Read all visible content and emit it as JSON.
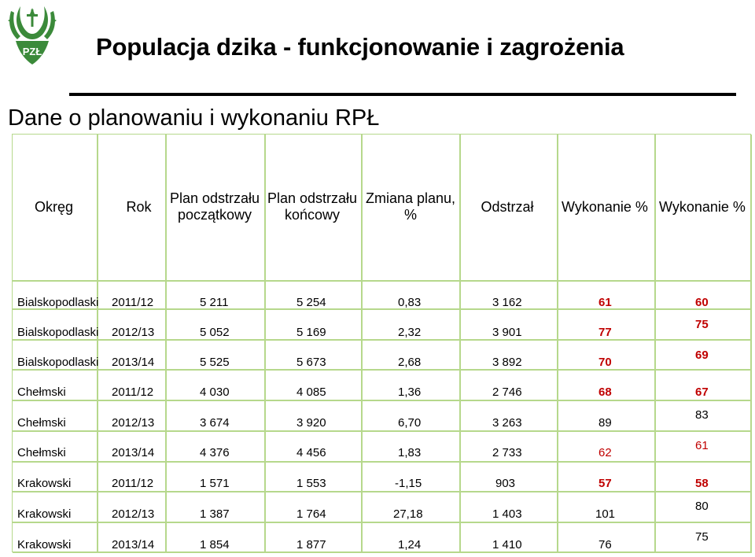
{
  "header": {
    "title": "Populacja dzika - funkcjonowanie i zagrożenia",
    "subtitle": "Dane o planowaniu i wykonaniu RPŁ"
  },
  "logo": {
    "text": "PZŁ"
  },
  "table": {
    "columns": [
      "Okręg",
      "Rok",
      "Plan odstrzału początkowy",
      "Plan odstrzału końcowy",
      "Zmiana planu, %",
      "Odstrzał",
      "Wykonanie %",
      "Wykonanie %"
    ],
    "rows": [
      {
        "okreg": "Bialskopodlaski",
        "rok": "2011/12",
        "plan_pocz": "5 211",
        "plan_konc": "5 254",
        "zmiana": "0,83",
        "odstrzal": "3 162",
        "wyk1": "61",
        "wyk2": "60"
      },
      {
        "okreg": "Bialskopodlaski",
        "rok": "2012/13",
        "plan_pocz": "5 052",
        "plan_konc": "5 169",
        "zmiana": "2,32",
        "odstrzal": "3 901",
        "wyk1": "77",
        "wyk2": "75"
      },
      {
        "okreg": "Bialskopodlaski",
        "rok": "2013/14",
        "plan_pocz": "5 525",
        "plan_konc": "5 673",
        "zmiana": "2,68",
        "odstrzal": "3 892",
        "wyk1": "70",
        "wyk2": "69"
      },
      {
        "okreg": "Chełmski",
        "rok": "2011/12",
        "plan_pocz": "4 030",
        "plan_konc": "4 085",
        "zmiana": "1,36",
        "odstrzal": "2 746",
        "wyk1": "68",
        "wyk2": "67"
      },
      {
        "okreg": "Chełmski",
        "rok": "2012/13",
        "plan_pocz": "3 674",
        "plan_konc": "3 920",
        "zmiana": "6,70",
        "odstrzal": "3 263",
        "wyk1": "89",
        "wyk2": "83"
      },
      {
        "okreg": "Chełmski",
        "rok": "2013/14",
        "plan_pocz": "4 376",
        "plan_konc": "4 456",
        "zmiana": "1,83",
        "odstrzal": "2 733",
        "wyk1": "62",
        "wyk2": "61"
      },
      {
        "okreg": "Krakowski",
        "rok": "2011/12",
        "plan_pocz": "1 571",
        "plan_konc": "1 553",
        "zmiana": "-1,15",
        "odstrzal": "903",
        "wyk1": "57",
        "wyk2": "58"
      },
      {
        "okreg": "Krakowski",
        "rok": "2012/13",
        "plan_pocz": "1 387",
        "plan_konc": "1 764",
        "zmiana": "27,18",
        "odstrzal": "1 403",
        "wyk1": "101",
        "wyk2": "80"
      },
      {
        "okreg": "Krakowski",
        "rok": "2013/14",
        "plan_pocz": "1 854",
        "plan_konc": "1 877",
        "zmiana": "1,24",
        "odstrzal": "1 410",
        "wyk1": "76",
        "wyk2": "75"
      }
    ]
  },
  "colors": {
    "grid": "#b6d88c",
    "highlight": "#c00000"
  }
}
